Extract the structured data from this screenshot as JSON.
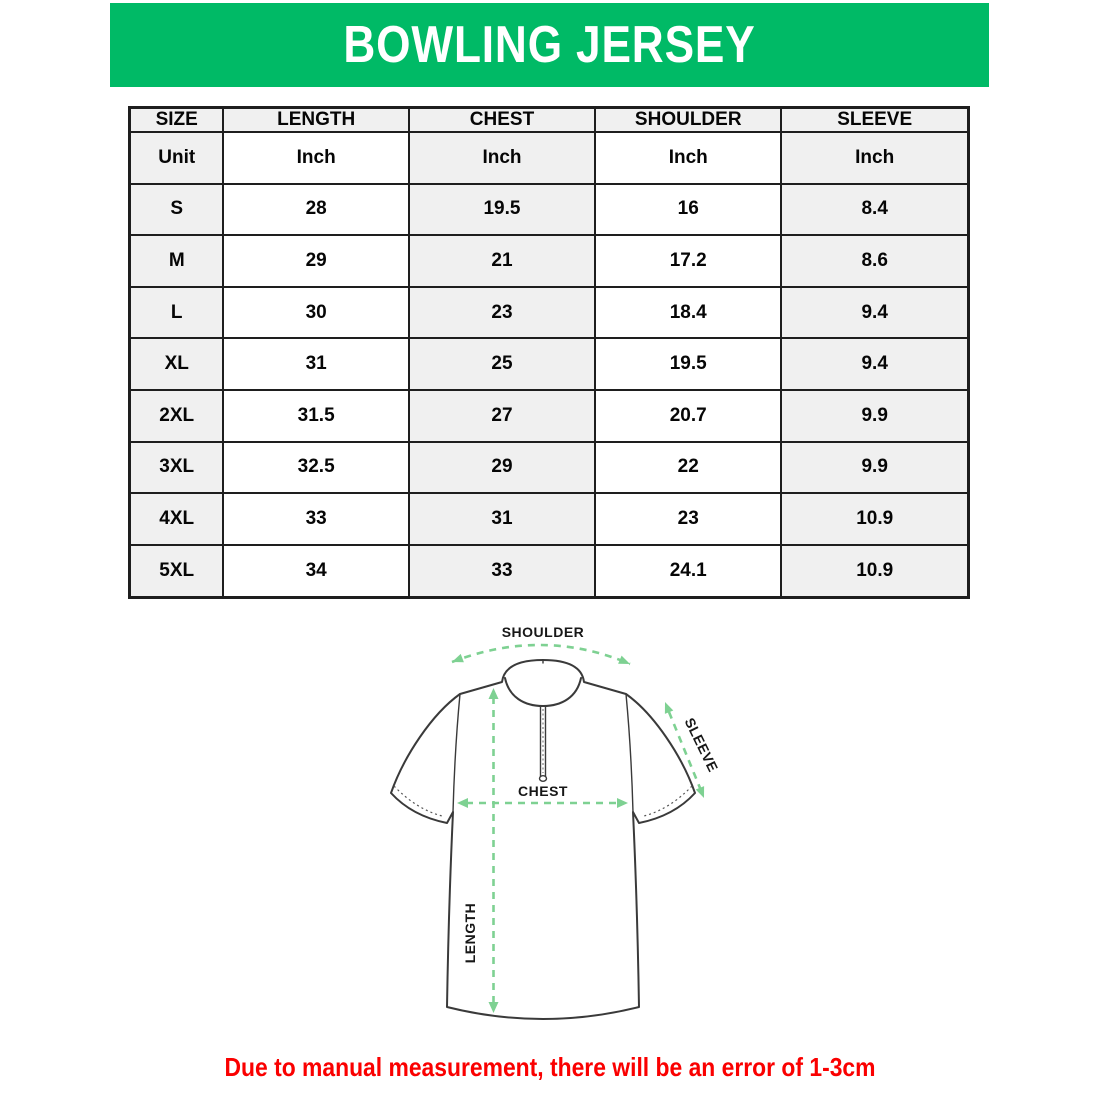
{
  "banner": {
    "title": "BOWLING JERSEY",
    "bg_color": "#00ba66",
    "text_color": "#ffffff"
  },
  "size_chart": {
    "columns": [
      "SIZE",
      "LENGTH",
      "CHEST",
      "SHOULDER",
      "SLEEVE"
    ],
    "unit_label": "Unit",
    "unit_values": [
      "Inch",
      "Inch",
      "Inch",
      "Inch"
    ],
    "rows": [
      {
        "size": "S",
        "length": "28",
        "chest": "19.5",
        "shoulder": "16",
        "sleeve": "8.4"
      },
      {
        "size": "M",
        "length": "29",
        "chest": "21",
        "shoulder": "17.2",
        "sleeve": "8.6"
      },
      {
        "size": "L",
        "length": "30",
        "chest": "23",
        "shoulder": "18.4",
        "sleeve": "9.4"
      },
      {
        "size": "XL",
        "length": "31",
        "chest": "25",
        "shoulder": "19.5",
        "sleeve": "9.4"
      },
      {
        "size": "2XL",
        "length": "31.5",
        "chest": "27",
        "shoulder": "20.7",
        "sleeve": "9.9"
      },
      {
        "size": "3XL",
        "length": "32.5",
        "chest": "29",
        "shoulder": "22",
        "sleeve": "9.9"
      },
      {
        "size": "4XL",
        "length": "33",
        "chest": "31",
        "shoulder": "23",
        "sleeve": "10.9"
      },
      {
        "size": "5XL",
        "length": "34",
        "chest": "33",
        "shoulder": "24.1",
        "sleeve": "10.9"
      }
    ],
    "stripe_color": "#f0f0f0",
    "border_color": "#1e1e1e"
  },
  "diagram": {
    "labels": {
      "shoulder": "SHOULDER",
      "sleeve": "SLEEVE",
      "chest": "CHEST",
      "length": "LENGTH"
    },
    "arrow_color": "#7ed192",
    "outline_color": "#3a3a3a"
  },
  "footnote": {
    "text": "Due to manual measurement, there will be an error of 1-3cm",
    "color": "#fa0000"
  }
}
